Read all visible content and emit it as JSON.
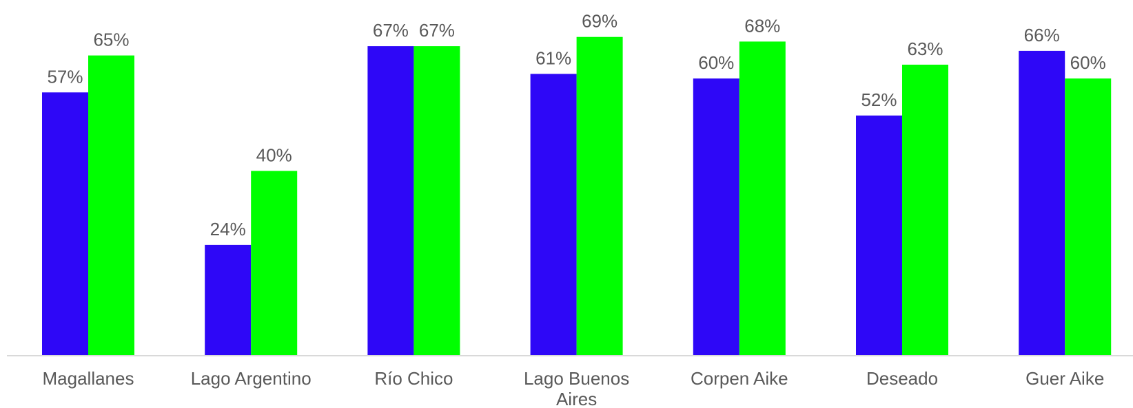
{
  "chart_data": {
    "type": "bar",
    "categories": [
      "Magallanes",
      "Lago Argentino",
      "Río Chico",
      "Lago Buenos Aires",
      "Corpen Aike",
      "Deseado",
      "Guer Aike"
    ],
    "category_lines": [
      [
        "Magallanes"
      ],
      [
        "Lago Argentino"
      ],
      [
        "Río Chico"
      ],
      [
        "Lago Buenos",
        "Aires"
      ],
      [
        "Corpen Aike"
      ],
      [
        "Deseado"
      ],
      [
        "Guer Aike"
      ]
    ],
    "series": [
      {
        "values": [
          57,
          24,
          67,
          61,
          60,
          52,
          66
        ],
        "labels": [
          "57%",
          "24%",
          "67%",
          "61%",
          "60%",
          "52%",
          "66%"
        ],
        "color": "#2E07F7"
      },
      {
        "values": [
          65,
          40,
          67,
          69,
          68,
          63,
          60
        ],
        "labels": [
          "65%",
          "40%",
          "67%",
          "69%",
          "68%",
          "63%",
          "60%"
        ],
        "color": "#00FF00"
      }
    ],
    "ylim": [
      0,
      77
    ],
    "value_suffix": "%",
    "grid": false,
    "legend": "none",
    "axis_line_color": "#D9D9D9",
    "label_color": "#595959"
  }
}
